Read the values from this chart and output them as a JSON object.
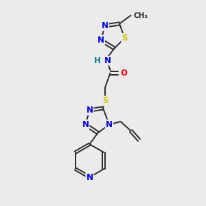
{
  "background_color": "#ebebeb",
  "bond_color": "#2a2a2a",
  "atom_colors": {
    "N": "#0000ee",
    "S": "#cccc00",
    "O": "#ff0000",
    "H": "#008080",
    "C": "#2a2a2a"
  }
}
